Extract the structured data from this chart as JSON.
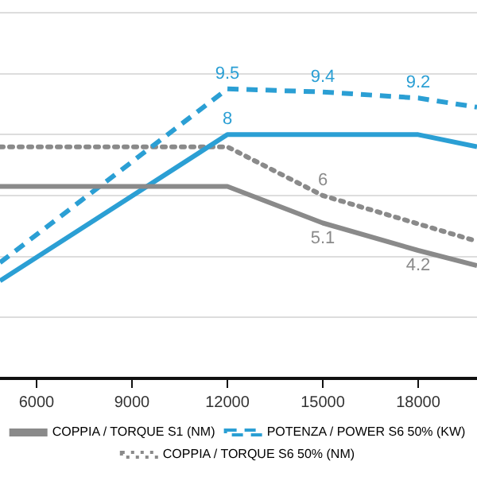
{
  "chart_data": {
    "type": "line",
    "x": [
      4850,
      12000,
      15000,
      18000,
      19850
    ],
    "xlim": [
      4850,
      19850
    ],
    "xticks": [
      6000,
      9000,
      12000,
      15000,
      18000
    ],
    "ylim": [
      0,
      12
    ],
    "yticks": [
      {
        "value": 2,
        "label": null
      },
      {
        "value": 4,
        "label": null
      },
      {
        "value": 6,
        "label": null
      },
      {
        "value": 8,
        "label": null
      },
      {
        "value": 10,
        "label": null
      },
      {
        "value": 12,
        "label": null
      }
    ],
    "tick_labels": "x",
    "grid": "y",
    "legend": "bottom",
    "marker": "none",
    "series": [
      {
        "name": "COPPIA / TORQUE S1 (NM)",
        "color": "#8a8a8a",
        "line_style": "solid",
        "values": [
          6.3,
          6.3,
          5.1,
          4.2,
          3.7
        ],
        "value_labels": [
          null,
          null,
          "5.1",
          "4.2",
          null
        ]
      },
      {
        "x": [
          4850,
          12000,
          18000,
          19850
        ],
        "color": "#2b9fd4",
        "line_style": "solid",
        "values": [
          3.2,
          8,
          8,
          7.6
        ],
        "value_labels": [
          null,
          "8",
          null,
          null
        ]
      },
      {
        "name": "POTENZA / POWER S6 50% (KW)",
        "color": "#2b9fd4",
        "line_style": "dashed",
        "values": [
          3.8,
          9.5,
          9.4,
          9.2,
          8.9
        ],
        "value_labels": [
          null,
          "9.5",
          "9.4",
          "9.2",
          null
        ]
      },
      {
        "name": "COPPIA / TORQUE S6 50% (NM)",
        "color": "#8a8a8a",
        "line_style": "dotted",
        "x": [
          4850,
          12000,
          15000,
          19850
        ],
        "values": [
          7.6,
          7.6,
          6,
          4.5
        ],
        "value_labels": [
          null,
          null,
          "6",
          null
        ]
      }
    ]
  }
}
